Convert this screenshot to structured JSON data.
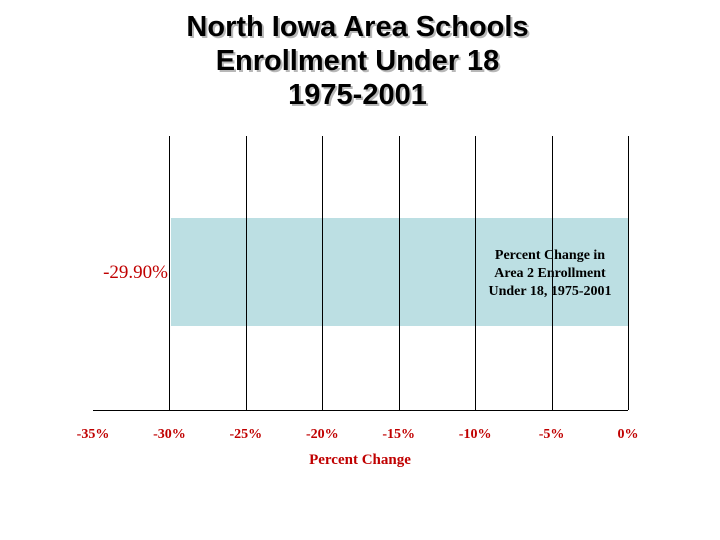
{
  "chart_data": {
    "type": "bar",
    "orientation": "horizontal",
    "title_lines": [
      "North Iowa Area Schools",
      "Enrollment Under 18",
      "1975-2001"
    ],
    "categories": [
      ""
    ],
    "values": [
      -29.9
    ],
    "value_label": "-29.90%",
    "xlabel": "Percent Change",
    "ylabel": "",
    "xlim": [
      -35,
      0
    ],
    "xticks": [
      -35,
      -30,
      -25,
      -20,
      -15,
      -10,
      -5,
      0
    ],
    "xtick_labels": [
      "-35%",
      "-30%",
      "-25%",
      "-20%",
      "-15%",
      "-10%",
      "-5%",
      "0%"
    ],
    "grid": "vertical",
    "annotation_lines": [
      "Percent Change in",
      "Area 2 Enrollment",
      "Under 18, 1975-2001"
    ],
    "colors": {
      "bar": "#bcdfe3",
      "accent_text": "#c00000",
      "grid": "#000000"
    }
  }
}
